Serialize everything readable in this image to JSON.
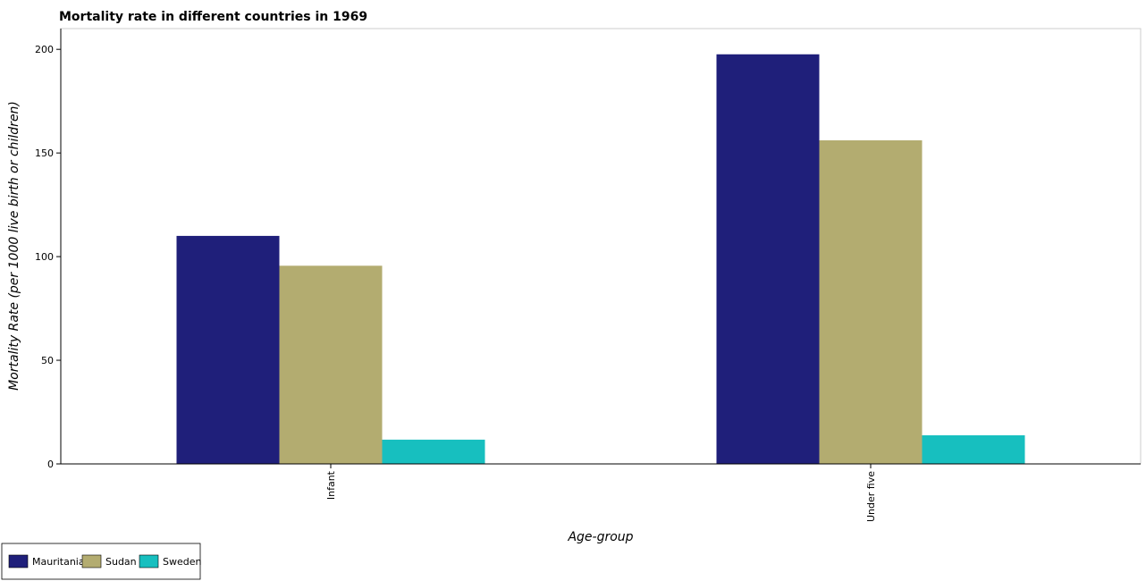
{
  "chart_data": {
    "type": "bar",
    "title": "Mortality rate in different countries in 1969",
    "xlabel": "Age-group",
    "ylabel": "Mortality Rate (per 1000 live birth or children)",
    "categories": [
      "Infant",
      "Under five"
    ],
    "series": [
      {
        "name": "Mauritania",
        "values": [
          110.0,
          197.6
        ],
        "color": "#1f1f7a"
      },
      {
        "name": "Sudan",
        "values": [
          95.6,
          156.1
        ],
        "color": "#b3ac70"
      },
      {
        "name": "Sweden",
        "values": [
          11.7,
          13.8
        ],
        "color": "#17bfbf"
      }
    ],
    "ylim": [
      0,
      210
    ],
    "yticks": [
      0,
      50,
      100,
      150,
      200
    ],
    "grid": false,
    "legend_position": "bottom-left"
  }
}
